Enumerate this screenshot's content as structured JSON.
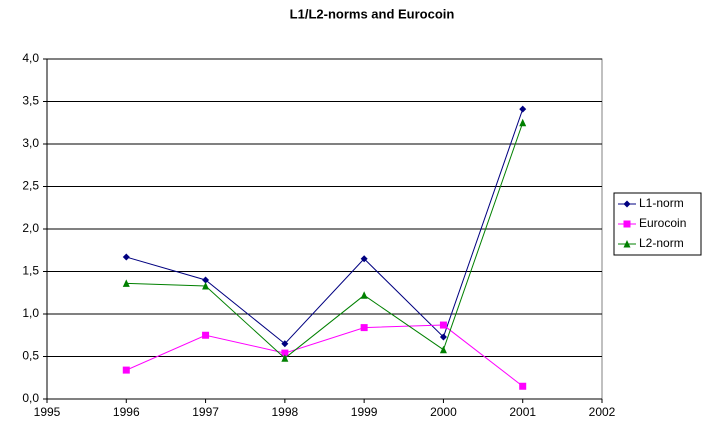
{
  "chart_data": {
    "type": "line",
    "title": "L1/L2-norms and Eurocoin",
    "x": [
      1996,
      1997,
      1998,
      1999,
      2000,
      2001
    ],
    "series": [
      {
        "name": "L1-norm",
        "color": "#000080",
        "marker": "diamond",
        "values": [
          1.67,
          1.4,
          0.65,
          1.65,
          0.73,
          3.41
        ]
      },
      {
        "name": "Eurocoin",
        "color": "#ff00ff",
        "marker": "square",
        "values": [
          0.34,
          0.75,
          0.54,
          0.84,
          0.87,
          0.15
        ]
      },
      {
        "name": "L2-norm",
        "color": "#008000",
        "marker": "triangle",
        "values": [
          1.36,
          1.33,
          0.48,
          1.22,
          0.58,
          3.25
        ]
      }
    ],
    "xlim": [
      1995,
      2002
    ],
    "xticks": [
      1995,
      1996,
      1997,
      1998,
      1999,
      2000,
      2001,
      2002
    ],
    "ylim": [
      0,
      4
    ],
    "yticks": [
      {
        "value": 0,
        "label": "0,0"
      },
      {
        "value": 0.5,
        "label": "0,5"
      },
      {
        "value": 1,
        "label": "1,0"
      },
      {
        "value": 1.5,
        "label": "1,5"
      },
      {
        "value": 2,
        "label": "2,0"
      },
      {
        "value": 2.5,
        "label": "2,5"
      },
      {
        "value": 3,
        "label": "3,0"
      },
      {
        "value": 3.5,
        "label": "3,5"
      },
      {
        "value": 4,
        "label": "4,0"
      }
    ],
    "grid": true,
    "legend": "right"
  }
}
